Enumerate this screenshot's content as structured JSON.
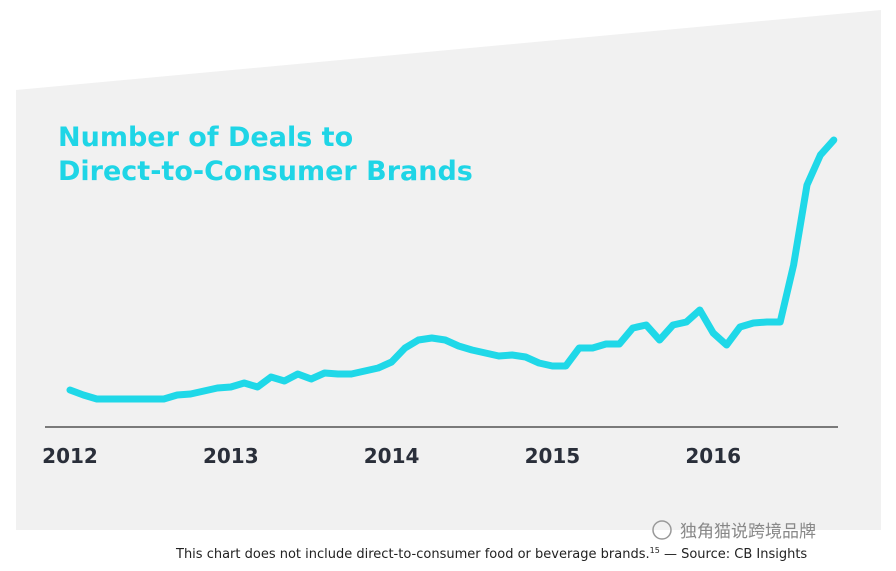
{
  "chart_data": {
    "type": "line",
    "title": [
      "Number of Deals to",
      "Direct-to-Consumer Brands"
    ],
    "categories": [
      "2012",
      null,
      null,
      null,
      null,
      null,
      null,
      null,
      null,
      null,
      null,
      null,
      "2013",
      null,
      null,
      null,
      null,
      null,
      null,
      null,
      null,
      null,
      null,
      null,
      "2014",
      null,
      null,
      null,
      null,
      null,
      null,
      null,
      null,
      null,
      null,
      null,
      "2015",
      null,
      null,
      null,
      null,
      null,
      null,
      null,
      null,
      null,
      null,
      null,
      "2016",
      null,
      null,
      null,
      null,
      null,
      null,
      null,
      null,
      null
    ],
    "series": [
      {
        "color": "#1fd8e8",
        "values": [
          37,
          32,
          28,
          28,
          28,
          28,
          28,
          28,
          32,
          33,
          36,
          39,
          40,
          44,
          40,
          50,
          46,
          53,
          48,
          54,
          53,
          53,
          56,
          59,
          65,
          79,
          87,
          89,
          87,
          81,
          77,
          74,
          71,
          72,
          70,
          64,
          61,
          61,
          79,
          79,
          83,
          83,
          99,
          102,
          87,
          102,
          105,
          117,
          94,
          82,
          100,
          104,
          105,
          105,
          162,
          242,
          272,
          287
        ]
      }
    ],
    "ylim": [
      0,
      300
    ]
  },
  "footnote": {
    "text": "This chart does not include direct-to-consumer food or beverage brands.",
    "ref": "15",
    "source": " — Source: CB Insights"
  },
  "watermark": "独角猫说跨境品牌"
}
